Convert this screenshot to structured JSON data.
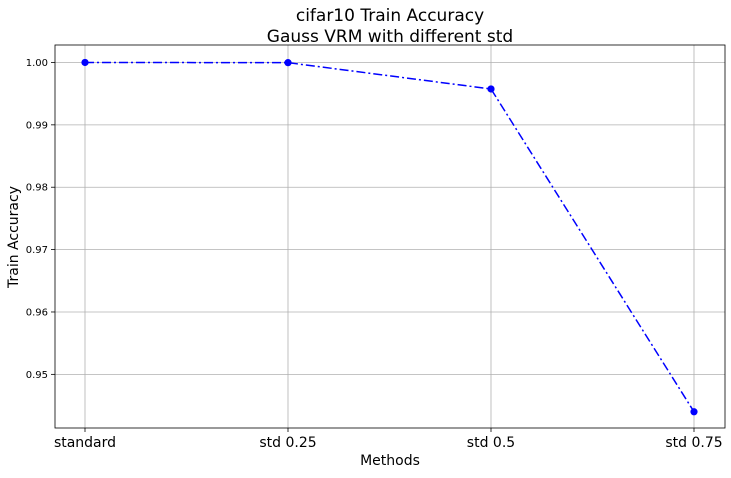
{
  "chart_data": {
    "type": "line",
    "title_lines": [
      "cifar10 Train Accuracy",
      "Gauss VRM with different std"
    ],
    "xlabel": "Methods",
    "ylabel": "Train Accuracy",
    "categories": [
      "standard",
      "std 0.25",
      "std 0.5",
      "std 0.75"
    ],
    "series": [
      {
        "values": [
          1.0,
          0.99997,
          0.99575,
          0.944
        ],
        "color": "#0000ff",
        "line_style": "dash-dot",
        "marker": "circle"
      }
    ],
    "ylim": [
      0.9414,
      1.0028
    ],
    "yticks": [
      0.95,
      0.96,
      0.97,
      0.98,
      0.99,
      1.0
    ],
    "ytick_labels": [
      "0.95",
      "0.96",
      "0.97",
      "0.98",
      "0.99",
      "1.00"
    ],
    "grid": true
  }
}
